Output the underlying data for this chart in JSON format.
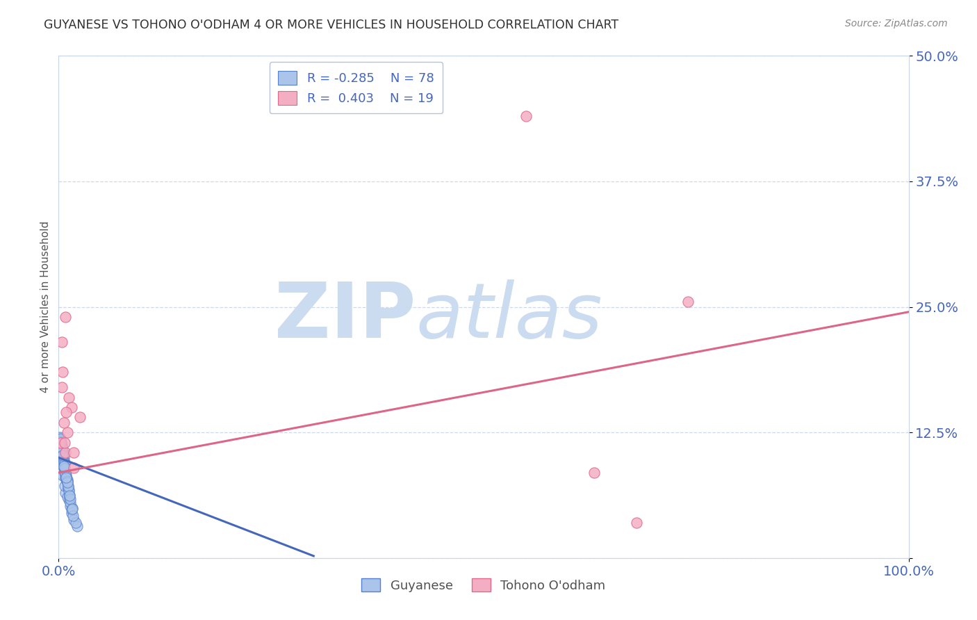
{
  "title": "GUYANESE VS TOHONO O'ODHAM 4 OR MORE VEHICLES IN HOUSEHOLD CORRELATION CHART",
  "source": "Source: ZipAtlas.com",
  "ylabel_label": "4 or more Vehicles in Household",
  "legend_labels": [
    "Guyanese",
    "Tohono O'odham"
  ],
  "legend_R": [
    -0.285,
    0.403
  ],
  "legend_N": [
    78,
    19
  ],
  "blue_color": "#aac4ea",
  "pink_color": "#f4aec4",
  "blue_edge_color": "#5580cc",
  "pink_edge_color": "#e06888",
  "blue_line_color": "#4466bb",
  "pink_line_color": "#dd6688",
  "title_color": "#303030",
  "axis_label_color": "#4466bb",
  "watermark_zip_color": "#ccdcf0",
  "watermark_atlas_color": "#ccdcf0",
  "watermark_text_zip": "ZIP",
  "watermark_text_atlas": "atlas",
  "background_color": "#ffffff",
  "grid_color": "#c8d4e8",
  "dot_size": 120,
  "guyanese_x": [
    0.3,
    0.5,
    0.2,
    0.8,
    1.2,
    0.4,
    0.6,
    0.3,
    0.7,
    1.0,
    1.5,
    0.2,
    0.4,
    0.6,
    0.8,
    0.5,
    1.1,
    0.9,
    0.1,
    0.3,
    1.8,
    2.2,
    0.6,
    0.7,
    1.4,
    0.2,
    0.4,
    0.7,
    1.0,
    1.2,
    0.5,
    0.8,
    0.3,
    0.6,
    0.9,
    1.3,
    1.6,
    0.4,
    0.7,
    1.0,
    0.2,
    0.5,
    0.8,
    1.1,
    1.4,
    0.4,
    0.6,
    0.9,
    0.3,
    1.3,
    0.7,
    0.5,
    2.0,
    0.7,
    0.4,
    0.6,
    0.9,
    1.2,
    0.2,
    0.5,
    0.8,
    1.5,
    0.4,
    0.7,
    1.0,
    1.4,
    0.3,
    0.5,
    0.7,
    1.1,
    1.7,
    0.6,
    0.4,
    1.0,
    1.3,
    0.5,
    0.9,
    1.6
  ],
  "guyanese_y": [
    9.5,
    8.2,
    10.1,
    6.5,
    5.8,
    11.2,
    10.5,
    9.8,
    7.2,
    6.1,
    4.5,
    11.5,
    10.8,
    9.0,
    8.5,
    10.2,
    7.0,
    7.8,
    12.0,
    9.3,
    3.8,
    3.2,
    10.0,
    8.8,
    5.2,
    11.8,
    10.6,
    9.2,
    7.5,
    6.8,
    10.3,
    8.0,
    11.4,
    9.7,
    8.3,
    6.3,
    5.0,
    10.9,
    9.5,
    7.8,
    11.6,
    10.4,
    8.7,
    7.2,
    5.5,
    10.7,
    9.3,
    7.9,
    11.3,
    6.0,
    8.5,
    10.5,
    3.5,
    9.0,
    10.8,
    9.6,
    8.1,
    6.7,
    11.9,
    10.3,
    8.4,
    4.8,
    10.8,
    9.4,
    7.7,
    5.9,
    11.5,
    10.6,
    8.9,
    7.1,
    4.2,
    9.1,
    11.0,
    7.5,
    6.2,
    10.2,
    8.0,
    4.9
  ],
  "tohono_x": [
    0.5,
    1.2,
    0.8,
    1.5,
    0.4,
    0.2,
    1.0,
    2.5,
    1.8,
    0.6,
    0.9,
    63.0,
    68.0,
    0.8,
    0.4,
    74.0,
    55.0,
    1.8,
    0.7
  ],
  "tohono_y": [
    18.5,
    16.0,
    24.0,
    15.0,
    17.0,
    11.5,
    12.5,
    14.0,
    9.0,
    13.5,
    14.5,
    8.5,
    3.5,
    10.5,
    21.5,
    25.5,
    44.0,
    10.5,
    11.5
  ],
  "blue_trend_start_x": 0.0,
  "blue_trend_start_y": 10.0,
  "blue_trend_end_x": 30.0,
  "blue_trend_end_y": 0.2,
  "pink_trend_start_x": 0.0,
  "pink_trend_start_y": 8.5,
  "pink_trend_end_x": 100.0,
  "pink_trend_end_y": 24.5,
  "xlim": [
    0,
    100
  ],
  "ylim": [
    0,
    50
  ],
  "xtick_positions": [
    0,
    100
  ],
  "xtick_labels": [
    "0.0%",
    "100.0%"
  ],
  "ytick_positions": [
    0,
    12.5,
    25.0,
    37.5,
    50.0
  ],
  "ytick_labels": [
    "",
    "12.5%",
    "25.0%",
    "37.5%",
    "50.0%"
  ]
}
